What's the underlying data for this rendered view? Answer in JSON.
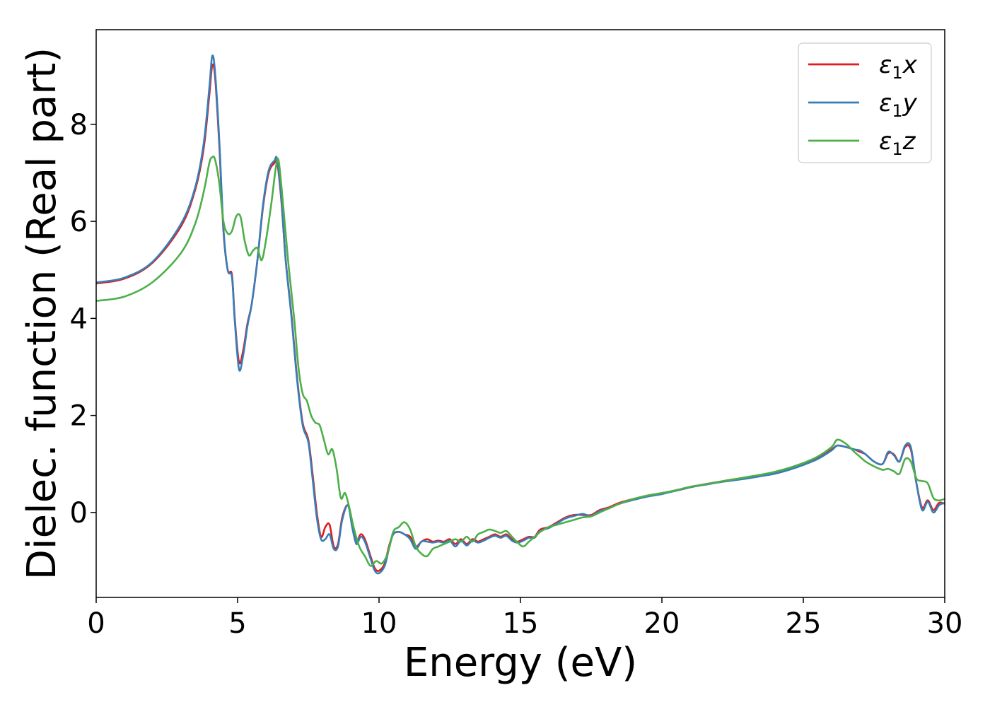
{
  "chart_data": {
    "type": "line",
    "title": "",
    "xlabel": "Energy (eV)",
    "ylabel": "Dielec. function (Real part)",
    "xlim": [
      0,
      30
    ],
    "ylim": [
      -1.75,
      9.95
    ],
    "xticks": [
      0,
      5,
      10,
      15,
      20,
      25,
      30
    ],
    "yticks": [
      0,
      2,
      4,
      6,
      8
    ],
    "grid": false,
    "legend_position": "top-right",
    "series": [
      {
        "name": "ε₁x",
        "legend_base": "ε",
        "legend_sub": "1",
        "legend_var": "x",
        "color": "#e41a1c",
        "x": [
          0,
          1,
          2,
          3,
          3.5,
          3.8,
          4.0,
          4.1,
          4.2,
          4.35,
          4.5,
          4.65,
          4.8,
          4.9,
          5.05,
          5.2,
          5.35,
          5.5,
          5.7,
          5.9,
          6.1,
          6.3,
          6.4,
          6.55,
          6.7,
          6.9,
          7.1,
          7.3,
          7.5,
          7.65,
          7.8,
          7.95,
          8.1,
          8.25,
          8.4,
          8.55,
          8.7,
          8.9,
          9.05,
          9.2,
          9.35,
          9.5,
          9.7,
          9.85,
          10.0,
          10.2,
          10.35,
          10.5,
          10.7,
          10.9,
          11.1,
          11.3,
          11.5,
          11.7,
          11.9,
          12.1,
          12.3,
          12.5,
          12.7,
          12.9,
          13.1,
          13.3,
          13.5,
          13.7,
          13.9,
          14.1,
          14.3,
          14.5,
          14.7,
          14.9,
          15.1,
          15.3,
          15.5,
          15.7,
          16.0,
          16.3,
          16.6,
          16.9,
          17.2,
          17.5,
          17.8,
          18.1,
          18.5,
          19.0,
          19.5,
          20.0,
          20.5,
          21.0,
          21.5,
          22.0,
          22.5,
          23.0,
          23.5,
          24.0,
          24.5,
          25.0,
          25.5,
          26.0,
          26.2,
          26.5,
          26.8,
          27.0,
          27.2,
          27.5,
          27.8,
          28.0,
          28.2,
          28.4,
          28.6,
          28.8,
          29.0,
          29.2,
          29.4,
          29.6,
          29.8,
          30.0
        ],
        "y": [
          4.72,
          4.82,
          5.15,
          5.9,
          6.65,
          7.5,
          8.6,
          9.2,
          9.0,
          7.6,
          5.8,
          5.0,
          4.9,
          4.0,
          3.1,
          3.35,
          3.9,
          4.3,
          5.2,
          6.3,
          7.0,
          7.2,
          7.22,
          6.4,
          5.2,
          4.1,
          2.8,
          1.85,
          1.5,
          0.8,
          0.0,
          -0.5,
          -0.3,
          -0.25,
          -0.7,
          -0.65,
          -0.1,
          0.15,
          -0.25,
          -0.6,
          -0.45,
          -0.55,
          -0.9,
          -1.15,
          -1.2,
          -1.05,
          -0.7,
          -0.45,
          -0.4,
          -0.45,
          -0.5,
          -0.7,
          -0.6,
          -0.55,
          -0.6,
          -0.58,
          -0.6,
          -0.55,
          -0.65,
          -0.55,
          -0.65,
          -0.55,
          -0.6,
          -0.55,
          -0.5,
          -0.45,
          -0.5,
          -0.45,
          -0.55,
          -0.6,
          -0.55,
          -0.5,
          -0.5,
          -0.35,
          -0.3,
          -0.2,
          -0.1,
          -0.05,
          -0.05,
          -0.05,
          0.05,
          0.1,
          0.2,
          0.28,
          0.35,
          0.4,
          0.45,
          0.52,
          0.58,
          0.63,
          0.68,
          0.72,
          0.76,
          0.82,
          0.9,
          1.0,
          1.12,
          1.3,
          1.38,
          1.35,
          1.3,
          1.25,
          1.2,
          1.05,
          1.0,
          1.22,
          1.2,
          1.05,
          1.35,
          1.3,
          0.6,
          0.1,
          0.25,
          0.05,
          0.2,
          0.18
        ]
      },
      {
        "name": "ε₁y",
        "legend_base": "ε",
        "legend_sub": "1",
        "legend_var": "y",
        "color": "#377eb8",
        "x": [
          0,
          1,
          2,
          3,
          3.5,
          3.8,
          4.0,
          4.1,
          4.2,
          4.35,
          4.5,
          4.65,
          4.8,
          4.9,
          5.05,
          5.2,
          5.35,
          5.5,
          5.7,
          5.9,
          6.1,
          6.3,
          6.4,
          6.55,
          6.7,
          6.9,
          7.1,
          7.3,
          7.5,
          7.65,
          7.8,
          7.95,
          8.1,
          8.25,
          8.4,
          8.55,
          8.7,
          8.9,
          9.05,
          9.2,
          9.35,
          9.5,
          9.7,
          9.85,
          10.0,
          10.2,
          10.35,
          10.5,
          10.7,
          10.9,
          11.1,
          11.3,
          11.5,
          11.7,
          11.9,
          12.1,
          12.3,
          12.5,
          12.7,
          12.9,
          13.1,
          13.3,
          13.5,
          13.7,
          13.9,
          14.1,
          14.3,
          14.5,
          14.7,
          14.9,
          15.1,
          15.3,
          15.5,
          15.7,
          16.0,
          16.3,
          16.6,
          16.9,
          17.2,
          17.5,
          17.8,
          18.1,
          18.5,
          19.0,
          19.5,
          20.0,
          20.5,
          21.0,
          21.5,
          22.0,
          22.5,
          23.0,
          23.5,
          24.0,
          24.5,
          25.0,
          25.5,
          26.0,
          26.2,
          26.5,
          26.8,
          27.0,
          27.2,
          27.5,
          27.8,
          28.0,
          28.2,
          28.4,
          28.6,
          28.8,
          29.0,
          29.2,
          29.4,
          29.6,
          29.8,
          30.0
        ],
        "y": [
          4.74,
          4.84,
          5.17,
          5.95,
          6.7,
          7.6,
          8.75,
          9.4,
          9.1,
          7.7,
          5.85,
          5.0,
          4.85,
          3.95,
          2.95,
          3.25,
          3.85,
          4.3,
          5.2,
          6.35,
          7.05,
          7.25,
          7.27,
          6.45,
          5.2,
          4.05,
          2.75,
          1.8,
          1.45,
          0.7,
          -0.1,
          -0.55,
          -0.55,
          -0.45,
          -0.75,
          -0.7,
          -0.15,
          0.15,
          -0.3,
          -0.65,
          -0.5,
          -0.6,
          -0.95,
          -1.2,
          -1.25,
          -1.1,
          -0.75,
          -0.45,
          -0.4,
          -0.45,
          -0.55,
          -0.75,
          -0.6,
          -0.6,
          -0.62,
          -0.6,
          -0.62,
          -0.58,
          -0.7,
          -0.58,
          -0.68,
          -0.58,
          -0.62,
          -0.58,
          -0.52,
          -0.48,
          -0.52,
          -0.48,
          -0.58,
          -0.62,
          -0.58,
          -0.52,
          -0.52,
          -0.38,
          -0.32,
          -0.22,
          -0.12,
          -0.07,
          -0.03,
          -0.07,
          0.03,
          0.08,
          0.18,
          0.26,
          0.33,
          0.38,
          0.45,
          0.52,
          0.57,
          0.62,
          0.66,
          0.7,
          0.75,
          0.8,
          0.88,
          0.98,
          1.1,
          1.28,
          1.38,
          1.35,
          1.3,
          1.28,
          1.2,
          1.05,
          1.0,
          1.25,
          1.18,
          1.05,
          1.38,
          1.35,
          0.6,
          0.05,
          0.22,
          0.0,
          0.15,
          0.2
        ]
      },
      {
        "name": "ε₁z",
        "legend_base": "ε",
        "legend_sub": "1",
        "legend_var": "z",
        "color": "#4daf4a",
        "x": [
          0,
          1,
          2,
          3,
          3.5,
          3.8,
          4.0,
          4.1,
          4.2,
          4.35,
          4.5,
          4.65,
          4.8,
          4.95,
          5.1,
          5.25,
          5.4,
          5.55,
          5.7,
          5.85,
          6.0,
          6.2,
          6.35,
          6.45,
          6.6,
          6.8,
          7.0,
          7.15,
          7.3,
          7.45,
          7.6,
          7.75,
          7.9,
          8.05,
          8.2,
          8.35,
          8.5,
          8.65,
          8.8,
          8.95,
          9.1,
          9.3,
          9.5,
          9.7,
          9.9,
          10.1,
          10.3,
          10.5,
          10.7,
          10.9,
          11.1,
          11.3,
          11.5,
          11.7,
          11.9,
          12.1,
          12.3,
          12.5,
          12.7,
          12.9,
          13.1,
          13.3,
          13.5,
          13.7,
          13.9,
          14.1,
          14.3,
          14.5,
          14.7,
          14.9,
          15.1,
          15.3,
          15.5,
          15.7,
          16.0,
          16.3,
          16.6,
          16.9,
          17.2,
          17.5,
          17.8,
          18.1,
          18.5,
          19.0,
          19.5,
          20.0,
          20.5,
          21.0,
          21.5,
          22.0,
          22.5,
          23.0,
          23.5,
          24.0,
          24.5,
          25.0,
          25.5,
          26.0,
          26.2,
          26.5,
          26.8,
          27.0,
          27.2,
          27.5,
          27.8,
          28.0,
          28.2,
          28.4,
          28.6,
          28.8,
          29.0,
          29.2,
          29.4,
          29.6,
          29.8,
          30.0
        ],
        "y": [
          4.36,
          4.45,
          4.75,
          5.35,
          5.95,
          6.6,
          7.2,
          7.32,
          7.28,
          6.8,
          6.0,
          5.75,
          5.8,
          6.1,
          6.1,
          5.6,
          5.3,
          5.4,
          5.45,
          5.2,
          5.6,
          6.4,
          7.1,
          7.25,
          6.4,
          5.1,
          4.0,
          3.0,
          2.45,
          2.3,
          2.0,
          1.85,
          1.8,
          1.5,
          1.2,
          1.3,
          0.9,
          0.3,
          0.4,
          0.1,
          -0.3,
          -0.7,
          -0.9,
          -1.1,
          -1.0,
          -1.05,
          -0.85,
          -0.4,
          -0.3,
          -0.2,
          -0.35,
          -0.7,
          -0.85,
          -0.9,
          -0.75,
          -0.7,
          -0.65,
          -0.6,
          -0.55,
          -0.6,
          -0.5,
          -0.6,
          -0.45,
          -0.4,
          -0.35,
          -0.38,
          -0.42,
          -0.38,
          -0.5,
          -0.62,
          -0.7,
          -0.6,
          -0.5,
          -0.4,
          -0.3,
          -0.25,
          -0.2,
          -0.15,
          -0.1,
          -0.08,
          0.0,
          0.08,
          0.18,
          0.28,
          0.35,
          0.4,
          0.46,
          0.53,
          0.58,
          0.63,
          0.68,
          0.73,
          0.78,
          0.84,
          0.92,
          1.02,
          1.15,
          1.35,
          1.5,
          1.42,
          1.25,
          1.15,
          1.05,
          0.95,
          0.88,
          0.9,
          0.85,
          0.8,
          1.1,
          1.05,
          0.7,
          0.65,
          0.6,
          0.3,
          0.25,
          0.28
        ]
      }
    ]
  }
}
